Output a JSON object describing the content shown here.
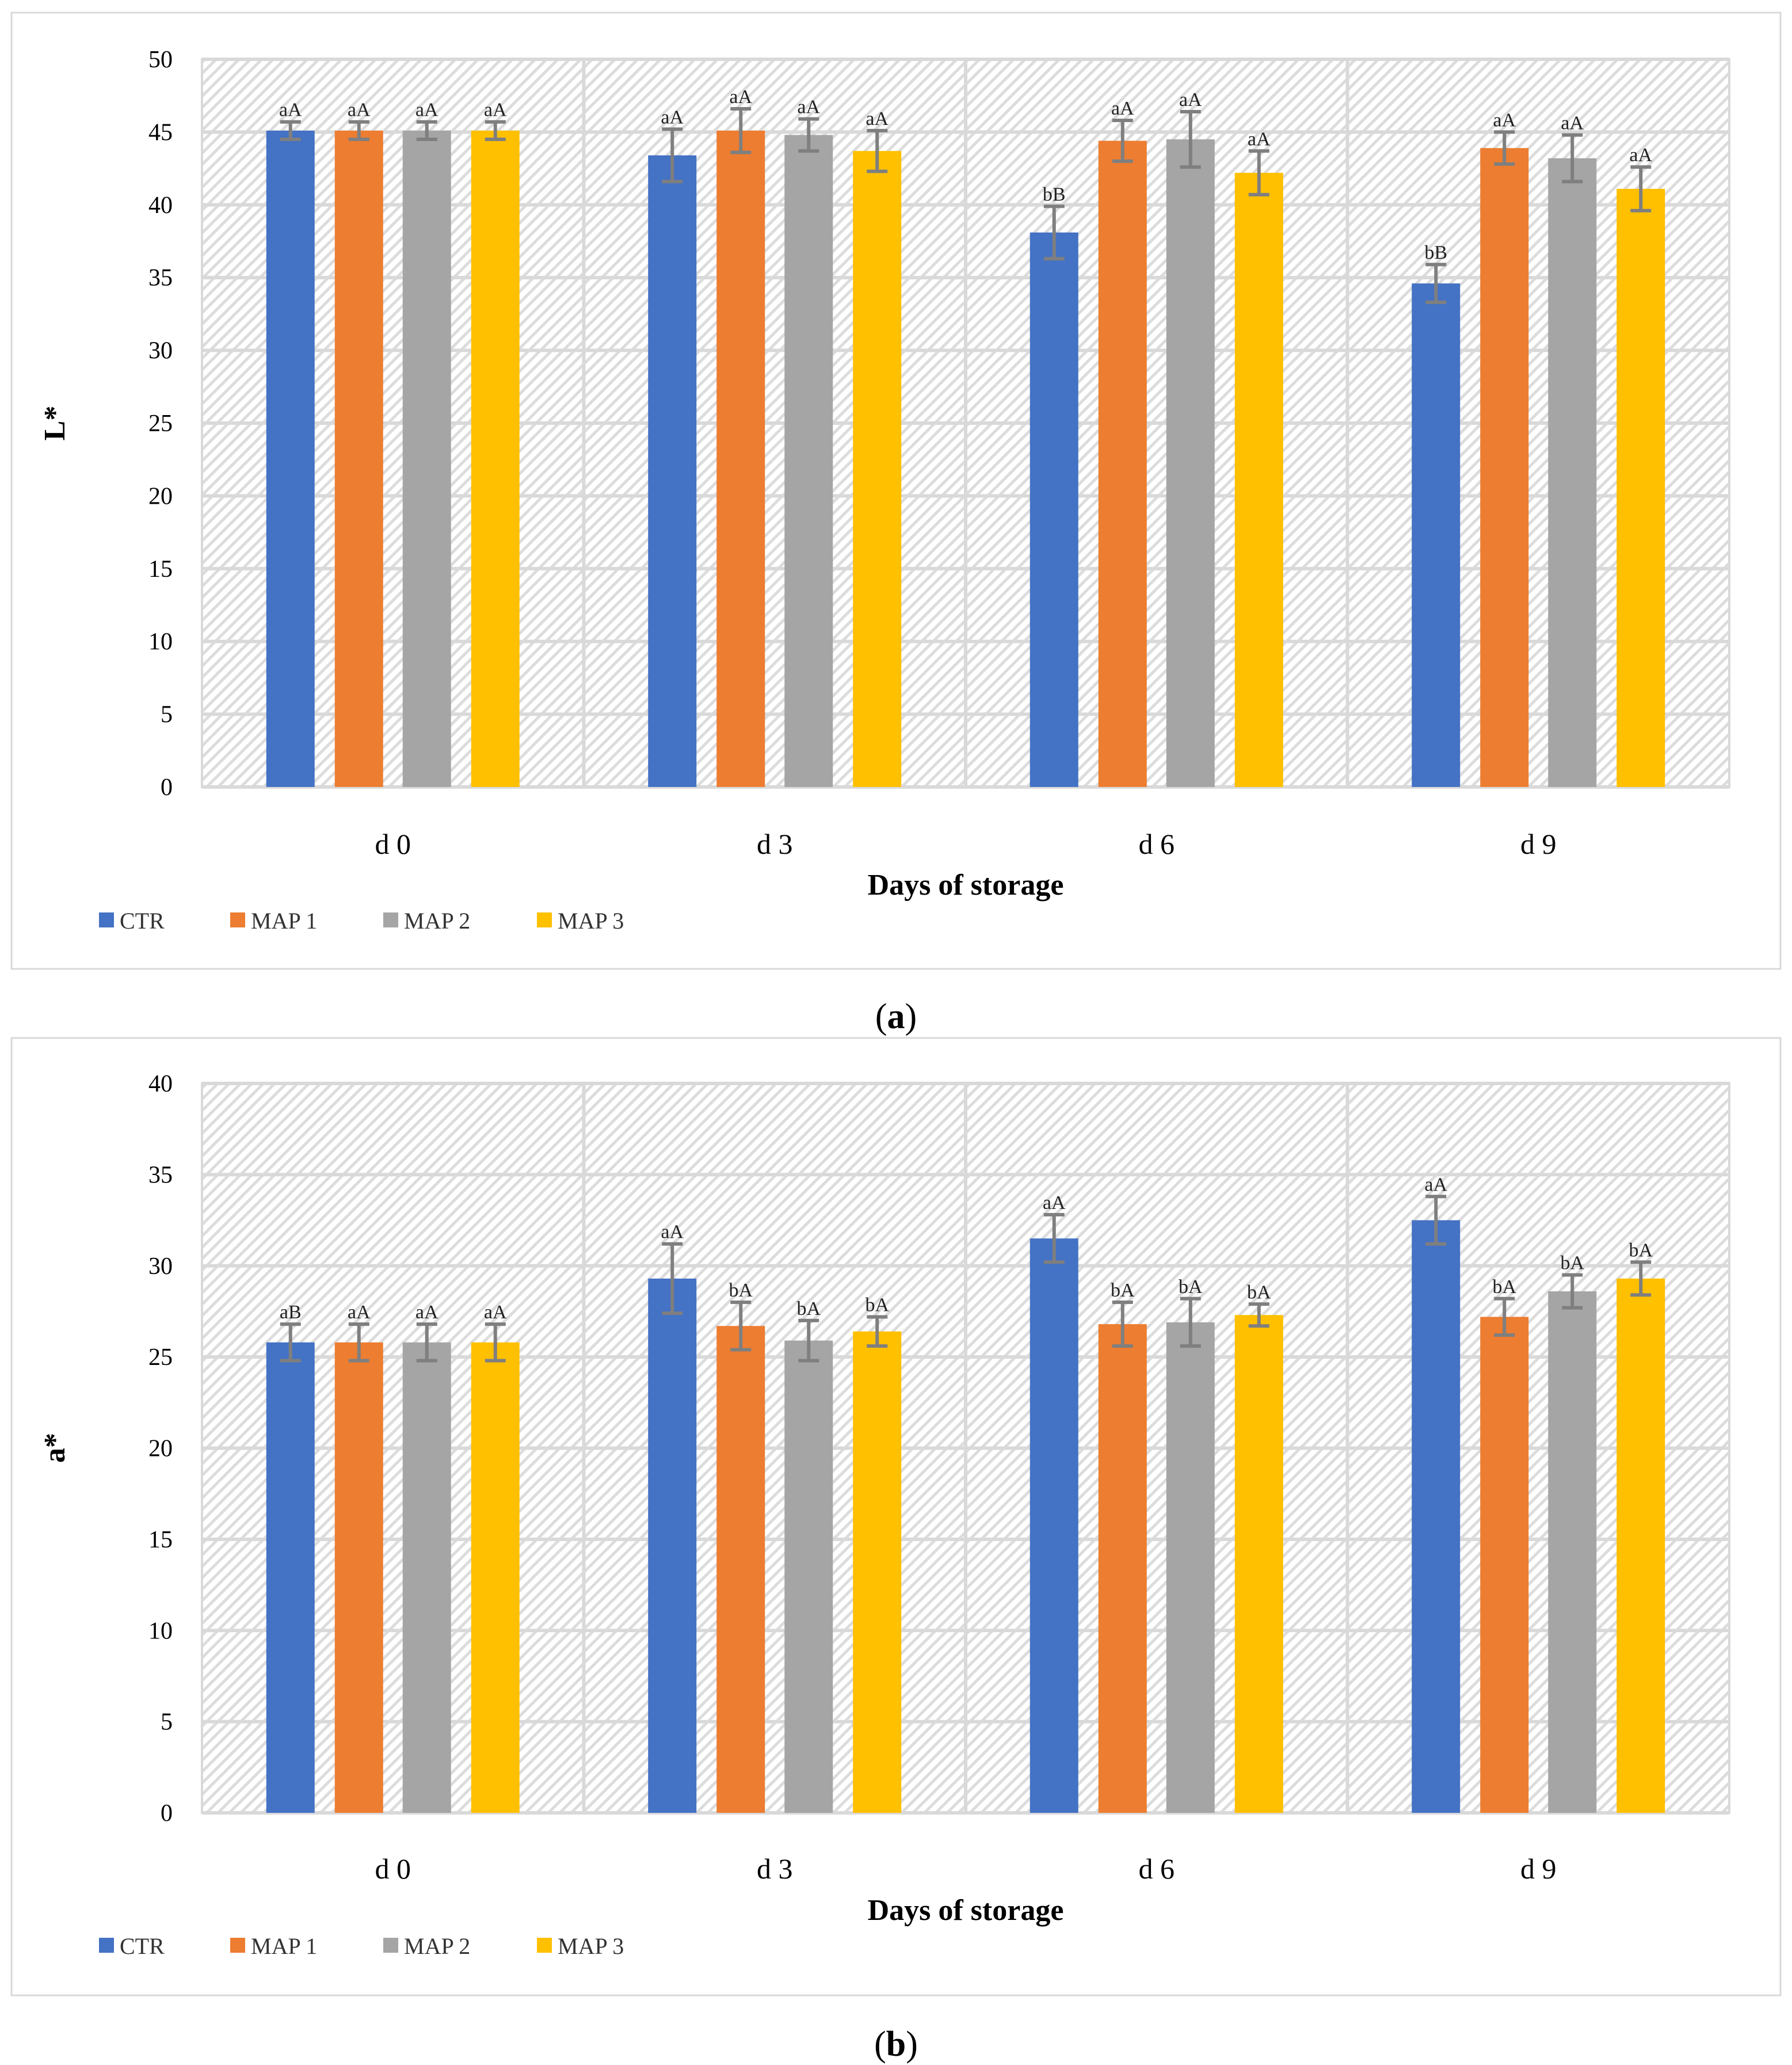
{
  "chart_data": [
    {
      "type": "bar",
      "panel_label": "a",
      "categories": [
        "d 0",
        "d 3",
        "d 6",
        "d 9"
      ],
      "ylabel": "L*",
      "xlabel": "Days of storage",
      "ylim": [
        0,
        50
      ],
      "yticks": [
        0,
        5,
        10,
        15,
        20,
        25,
        30,
        35,
        40,
        45,
        50
      ],
      "grid": true,
      "legend_position": "bottom-left",
      "series": [
        {
          "name": "CTR",
          "color": "#4472C4",
          "values": [
            45.1,
            43.4,
            38.1,
            34.6
          ],
          "errors": [
            0.6,
            1.8,
            1.8,
            1.3
          ],
          "labels": [
            "aA",
            "aA",
            "bB",
            "bB"
          ]
        },
        {
          "name": "MAP 1",
          "color": "#ED7D31",
          "values": [
            45.1,
            45.1,
            44.4,
            43.9
          ],
          "errors": [
            0.6,
            1.5,
            1.4,
            1.1
          ],
          "labels": [
            "aA",
            "aA",
            "aA",
            "aA"
          ]
        },
        {
          "name": "MAP 2",
          "color": "#A5A5A5",
          "values": [
            45.1,
            44.8,
            44.5,
            43.2
          ],
          "errors": [
            0.6,
            1.1,
            1.9,
            1.6
          ],
          "labels": [
            "aA",
            "aA",
            "aA",
            "aA"
          ]
        },
        {
          "name": "MAP 3",
          "color": "#FFC000",
          "values": [
            45.1,
            43.7,
            42.2,
            41.1
          ],
          "errors": [
            0.6,
            1.4,
            1.5,
            1.5
          ],
          "labels": [
            "aA",
            "aA",
            "aA",
            "aA"
          ]
        }
      ]
    },
    {
      "type": "bar",
      "panel_label": "b",
      "categories": [
        "d 0",
        "d 3",
        "d 6",
        "d 9"
      ],
      "ylabel": "a*",
      "xlabel": "Days of storage",
      "ylim": [
        0,
        40
      ],
      "yticks": [
        0,
        5,
        10,
        15,
        20,
        25,
        30,
        35,
        40
      ],
      "grid": true,
      "legend_position": "bottom-left",
      "series": [
        {
          "name": "CTR",
          "color": "#4472C4",
          "values": [
            25.8,
            29.3,
            31.5,
            32.5
          ],
          "errors": [
            1.0,
            1.9,
            1.3,
            1.3
          ],
          "labels": [
            "aB",
            "aA",
            "aA",
            "aA"
          ]
        },
        {
          "name": "MAP 1",
          "color": "#ED7D31",
          "values": [
            25.8,
            26.7,
            26.8,
            27.2
          ],
          "errors": [
            1.0,
            1.3,
            1.2,
            1.0
          ],
          "labels": [
            "aA",
            "bA",
            "bA",
            "bA"
          ]
        },
        {
          "name": "MAP 2",
          "color": "#A5A5A5",
          "values": [
            25.8,
            25.9,
            26.9,
            28.6
          ],
          "errors": [
            1.0,
            1.1,
            1.3,
            0.9
          ],
          "labels": [
            "aA",
            "bA",
            "bA",
            "bA"
          ]
        },
        {
          "name": "MAP 3",
          "color": "#FFC000",
          "values": [
            25.8,
            26.4,
            27.3,
            29.3
          ],
          "errors": [
            1.0,
            0.8,
            0.6,
            0.9
          ],
          "labels": [
            "aA",
            "bA",
            "bA",
            "bA"
          ]
        }
      ]
    }
  ]
}
